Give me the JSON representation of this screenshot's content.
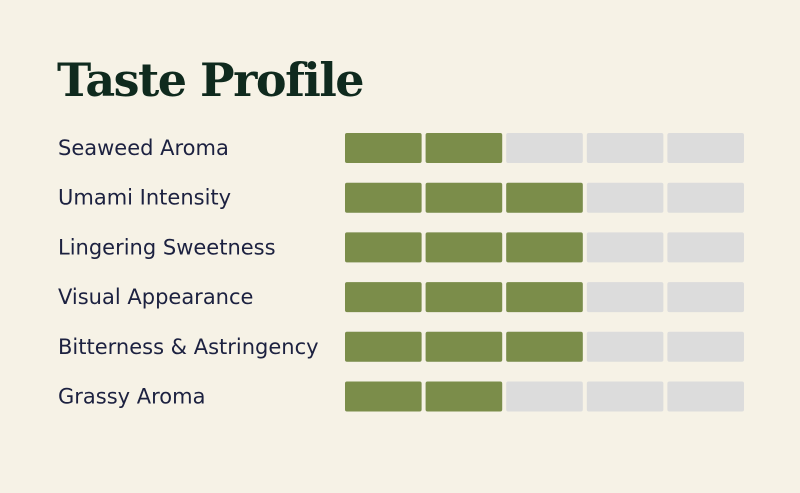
{
  "chart_data": {
    "type": "segmented-bar",
    "title": "Taste Profile",
    "categories": [
      "Seaweed Aroma",
      "Umami Intensity",
      "Lingering Sweetness",
      "Visual Appearance",
      "Bitterness & Astringency",
      "Grassy Aroma"
    ],
    "values": [
      2,
      3,
      3,
      3,
      3,
      2
    ],
    "xlim": [
      0,
      5
    ],
    "color": "#7b8d4a",
    "track_color": "#dcdcdc"
  }
}
